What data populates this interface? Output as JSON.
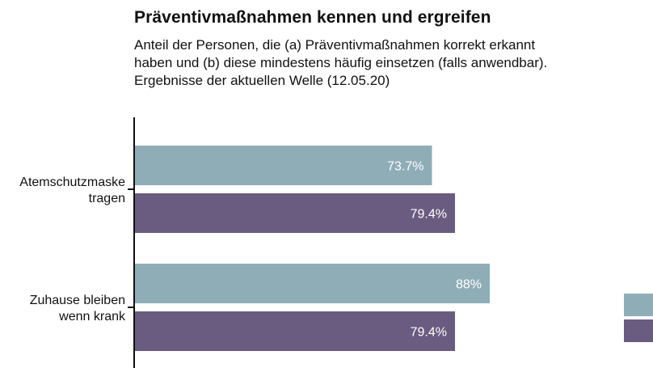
{
  "chart_data": {
    "type": "bar",
    "orientation": "horizontal",
    "title": "Präventivmaßnahmen kennen und ergreifen",
    "subtitle_lines": [
      "Anteil der Personen, die (a) Präventivmaßnahmen korrekt erkannt",
      "haben und (b) diese mindestens häufig einsetzen (falls anwendbar).",
      "Ergebnisse der aktuellen Welle (12.05.20)"
    ],
    "categories": [
      [
        "Atemschutzmaske",
        "tragen"
      ],
      [
        "Zuhause bleiben",
        "wenn krank"
      ]
    ],
    "series": [
      {
        "color": "#8fadb7",
        "values": [
          73.7,
          88
        ],
        "labels": [
          "73.7%",
          "88%"
        ]
      },
      {
        "color": "#6a5c80",
        "values": [
          79.4,
          79.4
        ],
        "labels": [
          "79.4%",
          "79.4%"
        ]
      }
    ],
    "xlim": [
      0,
      100
    ],
    "legend": "right"
  }
}
